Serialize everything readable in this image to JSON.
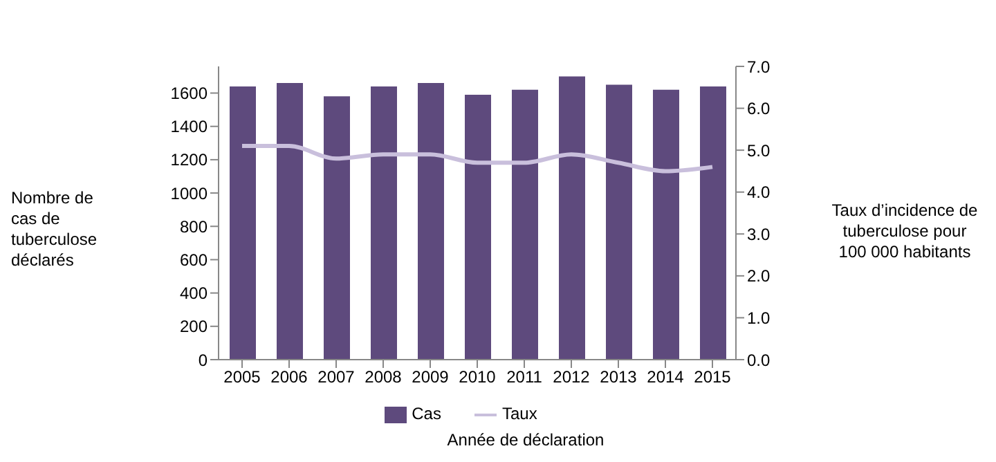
{
  "chart_data": {
    "type": "bar",
    "xlabel": "Année de déclaration",
    "ylabel": "Nombre de cas de tuberculose déclarés",
    "y2label": "Taux d’incidence de tuberculose pour 100 000 habitants",
    "categories": [
      "2005",
      "2006",
      "2007",
      "2008",
      "2009",
      "2010",
      "2011",
      "2012",
      "2013",
      "2014",
      "2015"
    ],
    "series": [
      {
        "name": "Cas",
        "color": "#5e4a7d",
        "values": [
          1640,
          1660,
          1580,
          1640,
          1660,
          1590,
          1620,
          1700,
          1650,
          1620,
          1640
        ]
      },
      {
        "name": "Taux",
        "type": "line",
        "axis": "y2",
        "color": "#c9bfdc",
        "values": [
          5.1,
          5.1,
          4.8,
          4.9,
          4.9,
          4.7,
          4.7,
          4.9,
          4.7,
          4.5,
          4.6
        ]
      }
    ],
    "ylim": [
      0,
      1760
    ],
    "yticks": [
      0,
      200,
      400,
      600,
      800,
      1000,
      1200,
      1400,
      1600
    ],
    "y2lim": [
      0,
      7
    ],
    "y2ticks": [
      {
        "value": 0,
        "label": "0.0"
      },
      {
        "value": 1,
        "label": "1.0"
      },
      {
        "value": 2,
        "label": "2.0"
      },
      {
        "value": 3,
        "label": "3.0"
      },
      {
        "value": 4,
        "label": "4.0"
      },
      {
        "value": 5,
        "label": "5.0"
      },
      {
        "value": 6,
        "label": "6.0"
      },
      {
        "value": 7,
        "label": "7.0"
      }
    ],
    "grid": false,
    "legend": "bottom",
    "marker": "none"
  }
}
